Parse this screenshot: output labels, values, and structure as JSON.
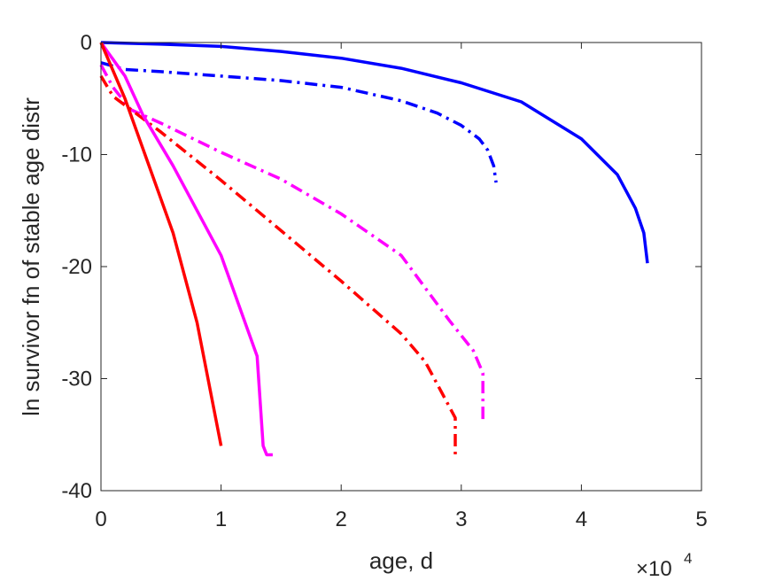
{
  "chart_data": {
    "type": "line",
    "xlabel": "age, d",
    "ylabel": "ln survivor fn of stable age distr",
    "x_scale_label": "×10",
    "x_scale_exponent": "4",
    "xlim": [
      0,
      5
    ],
    "ylim": [
      -40,
      0
    ],
    "xticks": [
      "0",
      "1",
      "2",
      "3",
      "4",
      "5"
    ],
    "yticks": [
      "0",
      "-10",
      "-20",
      "-30",
      "-40"
    ],
    "grid": false,
    "legend": "none",
    "series": [
      {
        "color": "#0000ff",
        "style": "solid",
        "points": [
          [
            0,
            0
          ],
          [
            0.5,
            -0.15
          ],
          [
            1,
            -0.35
          ],
          [
            1.5,
            -0.8
          ],
          [
            2,
            -1.4
          ],
          [
            2.5,
            -2.3
          ],
          [
            3,
            -3.6
          ],
          [
            3.5,
            -5.3
          ],
          [
            4,
            -8.6
          ],
          [
            4.3,
            -11.8
          ],
          [
            4.45,
            -14.8
          ],
          [
            4.52,
            -17.0
          ],
          [
            4.55,
            -19.7
          ]
        ]
      },
      {
        "color": "#0000ff",
        "style": "dashdot",
        "points": [
          [
            0,
            -1.8
          ],
          [
            0.2,
            -2.4
          ],
          [
            0.5,
            -2.6
          ],
          [
            1,
            -3.0
          ],
          [
            1.5,
            -3.4
          ],
          [
            2,
            -4.0
          ],
          [
            2.5,
            -5.2
          ],
          [
            2.8,
            -6.3
          ],
          [
            3.0,
            -7.4
          ],
          [
            3.15,
            -8.6
          ],
          [
            3.22,
            -9.6
          ],
          [
            3.27,
            -11.0
          ],
          [
            3.29,
            -12.5
          ]
        ]
      },
      {
        "color": "#ff00ff",
        "style": "dashdot",
        "points": [
          [
            0,
            -2.0
          ],
          [
            0.1,
            -4.0
          ],
          [
            0.25,
            -6.0
          ],
          [
            0.5,
            -7.2
          ],
          [
            1,
            -9.8
          ],
          [
            1.5,
            -12.2
          ],
          [
            2,
            -15.3
          ],
          [
            2.5,
            -19.0
          ],
          [
            2.9,
            -24.8
          ],
          [
            3.1,
            -27.5
          ],
          [
            3.18,
            -29.5
          ],
          [
            3.18,
            -34.0
          ]
        ]
      },
      {
        "color": "#ff0000",
        "style": "dashdot",
        "points": [
          [
            0,
            -3.0
          ],
          [
            0.1,
            -4.8
          ],
          [
            0.2,
            -5.6
          ],
          [
            0.5,
            -8.0
          ],
          [
            1,
            -12.3
          ],
          [
            1.5,
            -16.8
          ],
          [
            2,
            -21.3
          ],
          [
            2.5,
            -26.0
          ],
          [
            2.7,
            -28.5
          ],
          [
            2.85,
            -31.5
          ],
          [
            2.95,
            -33.5
          ],
          [
            2.95,
            -36.8
          ]
        ]
      },
      {
        "color": "#ff00ff",
        "style": "solid",
        "points": [
          [
            0,
            0
          ],
          [
            0.2,
            -3.0
          ],
          [
            0.35,
            -6.5
          ],
          [
            0.6,
            -11.0
          ],
          [
            1.0,
            -19.0
          ],
          [
            1.3,
            -28.0
          ],
          [
            1.35,
            -36.0
          ],
          [
            1.38,
            -36.8
          ],
          [
            1.43,
            -36.8
          ]
        ]
      },
      {
        "color": "#ff0000",
        "style": "solid",
        "points": [
          [
            0,
            0
          ],
          [
            0.2,
            -5.0
          ],
          [
            0.6,
            -17.0
          ],
          [
            0.8,
            -25.0
          ],
          [
            1.0,
            -36.0
          ]
        ]
      }
    ]
  }
}
